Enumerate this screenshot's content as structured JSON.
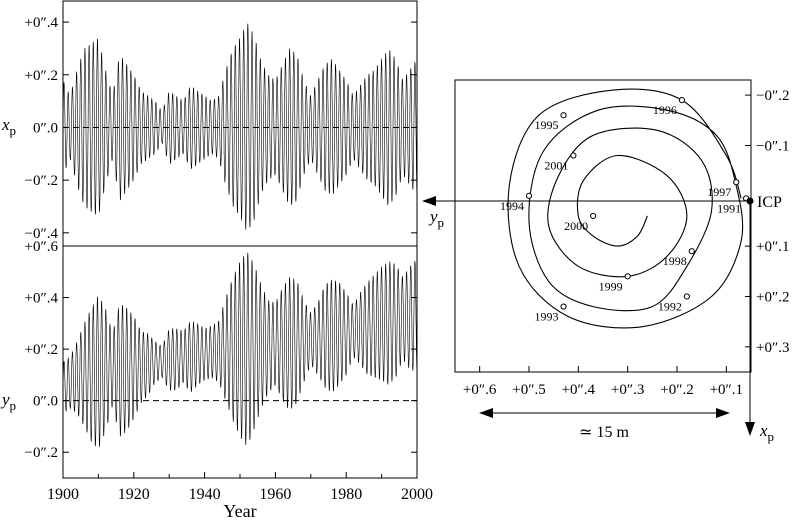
{
  "chart_data": [
    {
      "id": "xp_time_series",
      "type": "line",
      "ylabel": "x",
      "ylabel_sub": "p",
      "xlim": [
        1900,
        2000
      ],
      "ylim": [
        -0.45,
        0.48
      ],
      "y_ticks": [
        {
          "value": 0.4,
          "label": "+0″.4"
        },
        {
          "value": 0.2,
          "label": "+0″.2"
        },
        {
          "value": 0.0,
          "label": "0″.0"
        },
        {
          "value": -0.2,
          "label": "−0″.2"
        },
        {
          "value": -0.4,
          "label": "−0″.4"
        }
      ],
      "reference_line": {
        "y": 0.0,
        "style": "dashed"
      },
      "series": [
        {
          "x": [
            1900,
            1902,
            1904,
            1906,
            1908,
            1910,
            1912,
            1914,
            1916,
            1918,
            1920,
            1922,
            1924,
            1926,
            1928,
            1930,
            1932,
            1934,
            1936,
            1938,
            1940,
            1942,
            1944,
            1946,
            1948,
            1950,
            1952,
            1954,
            1956,
            1958,
            1960,
            1962,
            1964,
            1966,
            1968,
            1970,
            1972,
            1974,
            1976,
            1978,
            1980,
            1982,
            1984,
            1986,
            1988,
            1990,
            1992,
            1994,
            1996,
            1998,
            2000
          ],
          "amplitude": [
            0.18,
            0.12,
            0.22,
            0.3,
            0.32,
            0.34,
            0.22,
            0.12,
            0.28,
            0.24,
            0.2,
            0.14,
            0.12,
            0.1,
            0.06,
            0.14,
            0.12,
            0.1,
            0.16,
            0.14,
            0.12,
            0.1,
            0.12,
            0.22,
            0.3,
            0.34,
            0.4,
            0.35,
            0.25,
            0.2,
            0.18,
            0.24,
            0.3,
            0.28,
            0.18,
            0.12,
            0.18,
            0.24,
            0.26,
            0.22,
            0.18,
            0.12,
            0.16,
            0.2,
            0.22,
            0.26,
            0.3,
            0.26,
            0.18,
            0.22,
            0.26
          ],
          "period_years": 1.18
        }
      ]
    },
    {
      "id": "yp_time_series",
      "type": "line",
      "xlabel": "Year",
      "ylabel": "y",
      "ylabel_sub": "p",
      "xlim": [
        1900,
        2000
      ],
      "ylim": [
        -0.3,
        0.6
      ],
      "x_ticks": [
        {
          "value": 1900,
          "label": "1900"
        },
        {
          "value": 1920,
          "label": "1920"
        },
        {
          "value": 1940,
          "label": "1940"
        },
        {
          "value": 1960,
          "label": "1960"
        },
        {
          "value": 1980,
          "label": "1980"
        },
        {
          "value": 2000,
          "label": "2000"
        }
      ],
      "y_ticks": [
        {
          "value": 0.6,
          "label": "+0″.6"
        },
        {
          "value": 0.4,
          "label": "+0″.4"
        },
        {
          "value": 0.2,
          "label": "+0″.2"
        },
        {
          "value": 0.0,
          "label": "0″.0"
        },
        {
          "value": -0.2,
          "label": "−0″.2"
        }
      ],
      "reference_line": {
        "y": 0.0,
        "style": "dashed"
      },
      "series": [
        {
          "x": [
            1900,
            1902,
            1904,
            1906,
            1908,
            1910,
            1912,
            1914,
            1916,
            1918,
            1920,
            1922,
            1924,
            1926,
            1928,
            1930,
            1932,
            1934,
            1936,
            1938,
            1940,
            1942,
            1944,
            1946,
            1948,
            1950,
            1952,
            1954,
            1956,
            1958,
            1960,
            1962,
            1964,
            1966,
            1968,
            1970,
            1972,
            1974,
            1976,
            1978,
            1980,
            1982,
            1984,
            1986,
            1988,
            1990,
            1992,
            1994,
            1996,
            1998,
            2000
          ],
          "center": [
            0.05,
            0.07,
            0.09,
            0.1,
            0.1,
            0.11,
            0.12,
            0.12,
            0.12,
            0.12,
            0.13,
            0.13,
            0.14,
            0.15,
            0.15,
            0.16,
            0.16,
            0.17,
            0.17,
            0.18,
            0.18,
            0.19,
            0.19,
            0.2,
            0.2,
            0.2,
            0.2,
            0.21,
            0.21,
            0.21,
            0.22,
            0.22,
            0.22,
            0.23,
            0.23,
            0.24,
            0.24,
            0.25,
            0.25,
            0.26,
            0.26,
            0.27,
            0.28,
            0.28,
            0.29,
            0.3,
            0.3,
            0.31,
            0.32,
            0.32,
            0.33
          ],
          "amplitude": [
            0.1,
            0.1,
            0.14,
            0.2,
            0.26,
            0.3,
            0.24,
            0.14,
            0.26,
            0.24,
            0.2,
            0.14,
            0.12,
            0.08,
            0.06,
            0.12,
            0.12,
            0.1,
            0.14,
            0.12,
            0.1,
            0.1,
            0.12,
            0.2,
            0.28,
            0.34,
            0.38,
            0.32,
            0.24,
            0.18,
            0.16,
            0.22,
            0.26,
            0.24,
            0.16,
            0.1,
            0.14,
            0.2,
            0.22,
            0.2,
            0.16,
            0.1,
            0.14,
            0.18,
            0.2,
            0.22,
            0.24,
            0.22,
            0.16,
            0.2,
            0.22
          ],
          "period_years": 1.18
        }
      ]
    },
    {
      "id": "polar_motion_path",
      "type": "line",
      "xlabel": "x",
      "xlabel_sub": "p",
      "ylabel": "y",
      "ylabel_sub": "p",
      "xlim": [
        0.65,
        0.05
      ],
      "ylim": [
        -0.23,
        0.35
      ],
      "x_ticks": [
        {
          "value": 0.6,
          "label": "+0″.6"
        },
        {
          "value": 0.5,
          "label": "+0″.5"
        },
        {
          "value": 0.4,
          "label": "+0″.4"
        },
        {
          "value": 0.3,
          "label": "+0″.3"
        },
        {
          "value": 0.2,
          "label": "+0″.2"
        },
        {
          "value": 0.1,
          "label": "+0″.1"
        }
      ],
      "y_ticks": [
        {
          "value": -0.2,
          "label": "−0″.2"
        },
        {
          "value": -0.1,
          "label": "−0″.1"
        },
        {
          "value": 0.1,
          "label": "+0″.1"
        },
        {
          "value": 0.2,
          "label": "+0″.2"
        },
        {
          "value": 0.3,
          "label": "+0″.3"
        }
      ],
      "reference_point": {
        "label": "ICP",
        "x": 0.05,
        "y": 0.0
      },
      "scale_bar_label": "≃ 15 m",
      "series": [
        {
          "points": [
            {
              "x": 0.07,
              "y": 0.005
            },
            {
              "x": 0.1,
              "y": -0.08
            },
            {
              "x": 0.19,
              "y": -0.19
            },
            {
              "x": 0.33,
              "y": -0.21
            },
            {
              "x": 0.48,
              "y": -0.16
            },
            {
              "x": 0.54,
              "y": -0.02
            },
            {
              "x": 0.52,
              "y": 0.14
            },
            {
              "x": 0.42,
              "y": 0.24
            },
            {
              "x": 0.27,
              "y": 0.26
            },
            {
              "x": 0.13,
              "y": 0.2
            },
            {
              "x": 0.07,
              "y": 0.09
            },
            {
              "x": 0.08,
              "y": -0.02
            },
            {
              "x": 0.12,
              "y": -0.12
            },
            {
              "x": 0.22,
              "y": -0.17
            },
            {
              "x": 0.36,
              "y": -0.17
            },
            {
              "x": 0.47,
              "y": -0.09
            },
            {
              "x": 0.5,
              "y": 0.05
            },
            {
              "x": 0.46,
              "y": 0.17
            },
            {
              "x": 0.37,
              "y": 0.22
            },
            {
              "x": 0.25,
              "y": 0.22
            },
            {
              "x": 0.18,
              "y": 0.14
            },
            {
              "x": 0.13,
              "y": 0.03
            },
            {
              "x": 0.15,
              "y": -0.07
            },
            {
              "x": 0.24,
              "y": -0.13
            },
            {
              "x": 0.37,
              "y": -0.12
            },
            {
              "x": 0.44,
              "y": -0.04
            },
            {
              "x": 0.46,
              "y": 0.06
            },
            {
              "x": 0.4,
              "y": 0.14
            },
            {
              "x": 0.3,
              "y": 0.16
            },
            {
              "x": 0.22,
              "y": 0.12
            },
            {
              "x": 0.18,
              "y": 0.04
            },
            {
              "x": 0.22,
              "y": -0.04
            },
            {
              "x": 0.32,
              "y": -0.08
            },
            {
              "x": 0.39,
              "y": -0.03
            },
            {
              "x": 0.4,
              "y": 0.04
            },
            {
              "x": 0.37,
              "y": 0.08
            },
            {
              "x": 0.32,
              "y": 0.1
            },
            {
              "x": 0.28,
              "y": 0.08
            },
            {
              "x": 0.26,
              "y": 0.04
            }
          ]
        }
      ],
      "year_markers": [
        {
          "year": "1991",
          "x": 0.06,
          "y": 0.005
        },
        {
          "year": "1992",
          "x": 0.18,
          "y": 0.2
        },
        {
          "year": "1993",
          "x": 0.43,
          "y": 0.22
        },
        {
          "year": "1994",
          "x": 0.5,
          "y": 0.0
        },
        {
          "year": "1995",
          "x": 0.43,
          "y": -0.16
        },
        {
          "year": "1996",
          "x": 0.19,
          "y": -0.19
        },
        {
          "year": "1997",
          "x": 0.08,
          "y": -0.027
        },
        {
          "year": "1998",
          "x": 0.17,
          "y": 0.11
        },
        {
          "year": "1999",
          "x": 0.3,
          "y": 0.16
        },
        {
          "year": "2000",
          "x": 0.37,
          "y": 0.04
        },
        {
          "year": "2001",
          "x": 0.41,
          "y": -0.08
        }
      ]
    }
  ]
}
